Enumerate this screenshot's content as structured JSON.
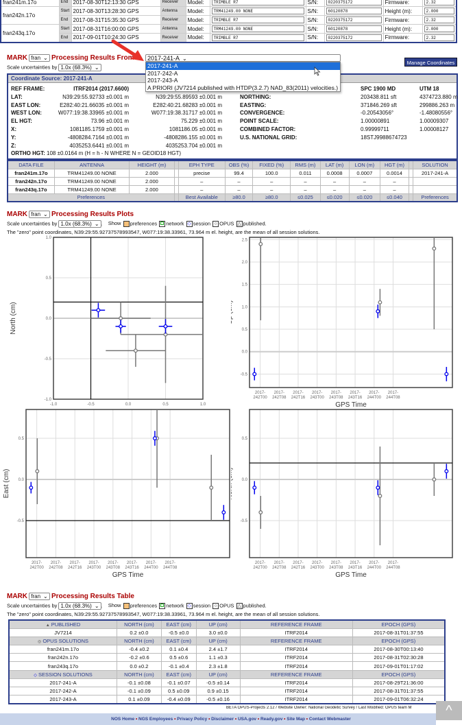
{
  "sessions": [
    {
      "file": "fran241m.17o",
      "rows": [
        {
          "se": "End",
          "time": "2017-08-30T12:13:30 GPS",
          "type": "Receiver",
          "model": "TRIMBLE R7",
          "sn": "0220375172",
          "flabel": "Firmware:",
          "fval": "2.32"
        }
      ]
    },
    {
      "file": "fran242n.17o",
      "rows": [
        {
          "se": "Start",
          "time": "2017-08-30T13:28:30 GPS",
          "type": "Antenna",
          "model": "TRM41249.00 NONE",
          "sn": "60120878",
          "flabel": "Height (m):",
          "fval": "2.000"
        },
        {
          "se": "End",
          "time": "2017-08-31T15:35:30 GPS",
          "type": "Receiver",
          "model": "TRIMBLE R7",
          "sn": "0220375172",
          "flabel": "Firmware:",
          "fval": "2.32"
        }
      ]
    },
    {
      "file": "fran243q.17o",
      "rows": [
        {
          "se": "Start",
          "time": "2017-08-31T16:00:00 GPS",
          "type": "Antenna",
          "model": "TRM41249.00 NONE",
          "sn": "60120878",
          "flabel": "Height (m):",
          "fval": "2.000"
        },
        {
          "se": "End",
          "time": "2017-09-01T10:24:30 GPS",
          "type": "Receiver",
          "model": "TRIMBLE R7",
          "sn": "0220375172",
          "flabel": "Firmware:",
          "fval": "2.32"
        }
      ]
    }
  ],
  "labels": {
    "model": "Model:",
    "sn": "S/N:",
    "mark": "MARK",
    "mark_value": "fran",
    "scale_label": "Scale uncertainties by",
    "scale_value": "1.0x (68.3%)",
    "show": "Show",
    "leg": [
      "preferences",
      "network",
      "session",
      "OPUS",
      "published."
    ],
    "zero": "The \"zero\" point coordinates, N39:29:55.92737578993547, W077:19:38.33961, 73.964 m el. height, are the mean of all session solutions."
  },
  "results_from": {
    "title": "Processing Results From",
    "value": "2017-241-A",
    "options": [
      "2017-241-A",
      "2017-242-A",
      "2017-243-A",
      "A PRIORI (JV7214 published with HTDP(3.2.7) NAD_83(2011) velocities.)"
    ]
  },
  "manage_button": "Manage Coordinates",
  "coords": {
    "header": "Coordinate Source: 2017-241-A",
    "left": [
      [
        "REF FRAME:",
        "ITRF2014 (2017.6600)",
        ""
      ],
      [
        "LAT:",
        "N39:29:55.92733 ±0.001 m",
        "N39:29:55.89593 ±0.001 m"
      ],
      [
        "EAST LON:",
        "E282:40:21.66035 ±0.001 m",
        "E282:40:21.68283 ±0.001 m"
      ],
      [
        "WEST LON:",
        "W077:19:38.33965 ±0.001 m",
        "W077:19:38.31717 ±0.001 m"
      ],
      [
        "EL HGT:",
        "73.96 ±0.001 m",
        "75.229 ±0.001 m"
      ],
      [
        "X:",
        "1081185.1759 ±0.001 m",
        "1081186.05 ±0.001 m"
      ],
      [
        "Y:",
        "-4808284.7164 ±0.001 m",
        "-4808286.155 ±0.001 m"
      ],
      [
        "Z:",
        "4035253.6441 ±0.001 m",
        "4035253.704 ±0.001 m"
      ]
    ],
    "right": [
      [
        "",
        "SPC 1900 MD",
        "UTM 18"
      ],
      [
        "NORTHING:",
        "203438.811 sft",
        "4374723.880 m"
      ],
      [
        "EASTING:",
        "371846.269 sft",
        "299886.263 m"
      ],
      [
        "CONVERGENCE:",
        "-0.20543056°",
        "-1.48080556°"
      ],
      [
        "POINT SCALE:",
        "1.00000891",
        "1.00009307"
      ],
      [
        "COMBINED FACTOR:",
        "0.99999711",
        "1.00008127"
      ],
      [
        "U.S. NATIONAL GRID:",
        "18STJ9988674723",
        ""
      ]
    ],
    "ortho_label": "ORTHO HGT:",
    "ortho": "108 ±0.0164 m (H = h - N WHERE N = GEOID18 HGT)"
  },
  "datafiles": {
    "headers": [
      "DATA FILE",
      "ANTENNA",
      "HEIGHT (m)",
      "",
      "EPH TYPE",
      "OBS (%)",
      "FIXED (%)",
      "RMS (m)",
      "LAT (m)",
      "LON (m)",
      "HGT (m)",
      "",
      "SOLUTION"
    ],
    "rows": [
      [
        "fran241m.17o",
        "TRM41249.00    NONE",
        "2.000",
        "",
        "precise",
        "99.4",
        "100.0",
        "0.011",
        "0.0008",
        "0.0007",
        "0.0014",
        "",
        "2017-241-A"
      ],
      [
        "fran242n.17o",
        "TRM41249.00    NONE",
        "2.000",
        "",
        "–",
        "–",
        "–",
        "–",
        "–",
        "–",
        "–",
        "",
        ""
      ],
      [
        "fran243q.17o",
        "TRM41249.00    NONE",
        "2.000",
        "",
        "–",
        "–",
        "–",
        "–",
        "–",
        "–",
        "–",
        "",
        ""
      ]
    ],
    "prefs": [
      "Preferences",
      "Best Available",
      "≥80.0",
      "≥80.0",
      "≤0.025",
      "≤0.020",
      "≤0.020",
      "≤0.040",
      "Preferences"
    ]
  },
  "plots_title": "Processing Results Plots",
  "table_title": "Processing Results Table",
  "results": {
    "sections": [
      {
        "title": "PUBLISHED",
        "icon": "triangle",
        "rows": [
          [
            "JV7214",
            "0.2 ±0.0",
            "-0.5 ±0.0",
            "3.0 ±0.0",
            "ITRF2014",
            "2017-08-31T01:37:55"
          ]
        ]
      },
      {
        "title": "OPUS SOLUTIONS",
        "icon": "circle",
        "rows": [
          [
            "fran241m.17o",
            "-0.4 ±0.2",
            "0.1 ±0.4",
            "2.4 ±1.7",
            "ITRF2014",
            "2017-08-30T00:13:40"
          ],
          [
            "fran242n.17o",
            "-0.2 ±0.6",
            "0.5 ±0.6",
            "1.1 ±0.3",
            "ITRF2014",
            "2017-08-31T02:30:28"
          ],
          [
            "fran243q.17o",
            "0.0 ±0.2",
            "-0.1 ±0.4",
            "2.3 ±1.8",
            "ITRF2014",
            "2017-09-01T01:17:02"
          ]
        ]
      },
      {
        "title": "SESSION SOLUTIONS",
        "icon": "diamond",
        "rows": [
          [
            "2017-241-A",
            "-0.1 ±0.08",
            "-0.1 ±0.07",
            "-0.5 ±0.14",
            "ITRF2014",
            "2017-08-29T21:36:00"
          ],
          [
            "2017-242-A",
            "-0.1 ±0.09",
            "0.5 ±0.09",
            "0.9 ±0.15",
            "ITRF2014",
            "2017-08-31T01:37:55"
          ],
          [
            "2017-243-A",
            "0.1 ±0.09",
            "-0.4 ±0.09",
            "-0.5 ±0.16",
            "ITRF2014",
            "2017-09-01T06:32:24"
          ]
        ]
      }
    ],
    "cols": [
      "NORTH (cm)",
      "EAST (cm)",
      "UP (cm)",
      "REFERENCE FRAME",
      "EPOCH (GPS)"
    ]
  },
  "footer": {
    "credit": "BETA OPUS-Projects 2.12  /  Website Owner: National Geodetic Survey  /  Last Modified: OPUS team M",
    "links": [
      "NOS Home",
      "NGS Employees",
      "Privacy Policy",
      "Disclaimer",
      "USA.gov",
      "Ready.gov",
      "Site Map",
      "Contact Webmaster"
    ]
  },
  "colors": {
    "session": "#0000ee",
    "opus": "#777777",
    "published": "#111111",
    "title_red": "#aa0000",
    "nav": "#c8d4ea",
    "button": "#2c3e8c"
  },
  "chart_data": [
    {
      "type": "scatter",
      "xlabel": "East (cm)",
      "ylabel": "North (cm)",
      "xlim": [
        -1,
        1
      ],
      "ylim": [
        -1,
        1
      ],
      "xticks": [
        "-1.0",
        "-0.5",
        "0.0",
        "0.5",
        "1.0"
      ],
      "yticks": [
        "-1.0",
        "-0.5",
        "0.0",
        "0.5",
        "1.0"
      ],
      "published": {
        "x": -0.5,
        "y": 0.2
      },
      "series": [
        {
          "name": "session",
          "points": [
            {
              "x": -0.1,
              "ex": 0.07,
              "y": -0.1,
              "ey": 0.08
            },
            {
              "x": 0.5,
              "ex": 0.09,
              "y": -0.1,
              "ey": 0.09
            },
            {
              "x": -0.4,
              "ex": 0.09,
              "y": 0.1,
              "ey": 0.09
            }
          ]
        },
        {
          "name": "OPUS",
          "points": [
            {
              "x": 0.1,
              "ex": 0.4,
              "y": -0.4,
              "ey": 0.2
            },
            {
              "x": 0.5,
              "ex": 0.6,
              "y": -0.2,
              "ey": 0.6
            },
            {
              "x": -0.1,
              "ex": 0.4,
              "y": 0.0,
              "ey": 0.2
            }
          ]
        }
      ]
    },
    {
      "type": "scatter",
      "xlabel": "GPS Time",
      "ylabel": "Up (cm)",
      "xlim": [
        -4.5,
        81
      ],
      "ylim": [
        -0.8,
        2.55
      ],
      "yticks": [
        "-0.5",
        "0.0",
        "0.5",
        "1.0",
        "1.5",
        "2.0",
        "2.5"
      ],
      "xticks": [
        "2017-\n242T00",
        "2017-\n242T08",
        "2017-\n242T16",
        "2017-\n243T00",
        "2017-\n243T08",
        "2017-\n243T16",
        "2017-\n244T00",
        "2017-\n244T08"
      ],
      "published": 3.0,
      "series": [
        {
          "name": "session",
          "points": [
            {
              "x": -2.4,
              "y": -0.5,
              "e": 0.14
            },
            {
              "x": 49.6,
              "y": 0.9,
              "e": 0.15
            },
            {
              "x": 78.5,
              "y": -0.5,
              "e": 0.16
            }
          ]
        },
        {
          "name": "OPUS",
          "points": [
            {
              "x": 0.2,
              "y": 2.4,
              "e": 1.7
            },
            {
              "x": 50.5,
              "y": 1.1,
              "e": 0.3
            },
            {
              "x": 73.3,
              "y": 2.3,
              "e": 1.8
            }
          ]
        }
      ]
    },
    {
      "type": "scatter",
      "xlabel": "GPS Time",
      "ylabel": "East (cm)",
      "xlim": [
        -4.5,
        81
      ],
      "ylim": [
        -0.95,
        0.85
      ],
      "yticks": [
        "-0.5",
        "0.0",
        "0.5"
      ],
      "xticks": [
        "2017-\n242T00",
        "2017-\n242T08",
        "2017-\n242T16",
        "2017-\n243T00",
        "2017-\n243T08",
        "2017-\n243T16",
        "2017-\n244T00",
        "2017-\n244T08"
      ],
      "published": -0.5,
      "series": [
        {
          "name": "session",
          "points": [
            {
              "x": -2.4,
              "y": -0.1,
              "e": 0.07
            },
            {
              "x": 49.6,
              "y": 0.5,
              "e": 0.09
            },
            {
              "x": 78.5,
              "y": -0.4,
              "e": 0.09
            }
          ]
        },
        {
          "name": "OPUS",
          "points": [
            {
              "x": 0.2,
              "y": 0.1,
              "e": 0.4
            },
            {
              "x": 50.5,
              "y": 0.5,
              "e": 0.6
            },
            {
              "x": 73.3,
              "y": -0.1,
              "e": 0.4
            }
          ]
        }
      ]
    },
    {
      "type": "scatter",
      "xlabel": "GPS Time",
      "ylabel": "North (cm)",
      "xlim": [
        -4.5,
        81
      ],
      "ylim": [
        -0.95,
        0.85
      ],
      "yticks": [
        "-0.5",
        "0.0",
        "0.5"
      ],
      "xticks": [
        "2017-\n242T00",
        "2017-\n242T08",
        "2017-\n242T16",
        "2017-\n243T00",
        "2017-\n243T08",
        "2017-\n243T16",
        "2017-\n244T00",
        "2017-\n244T08"
      ],
      "published": 0.2,
      "series": [
        {
          "name": "session",
          "points": [
            {
              "x": -2.4,
              "y": -0.1,
              "e": 0.08
            },
            {
              "x": 49.6,
              "y": -0.1,
              "e": 0.09
            },
            {
              "x": 78.5,
              "y": 0.1,
              "e": 0.09
            }
          ]
        },
        {
          "name": "OPUS",
          "points": [
            {
              "x": 0.2,
              "y": -0.4,
              "e": 0.2
            },
            {
              "x": 50.5,
              "y": -0.2,
              "e": 0.6
            },
            {
              "x": 73.3,
              "y": 0.0,
              "e": 0.2
            }
          ]
        }
      ]
    }
  ]
}
